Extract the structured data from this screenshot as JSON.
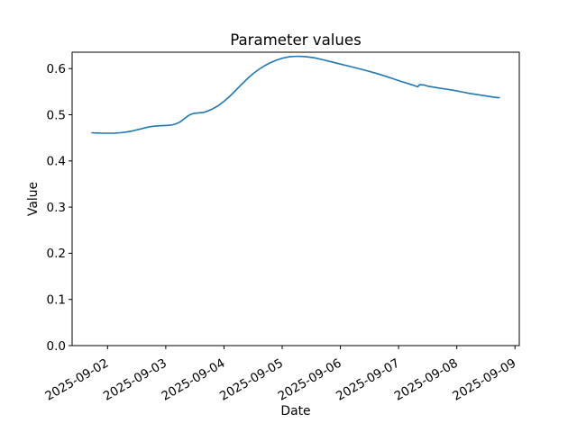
{
  "chart_data": {
    "type": "line",
    "title": "Parameter values",
    "xlabel": "Date",
    "ylabel": "Value",
    "x_tick_labels": [
      "2025-09-02",
      "2025-09-03",
      "2025-09-04",
      "2025-09-05",
      "2025-09-06",
      "2025-09-07",
      "2025-09-08",
      "2025-09-09"
    ],
    "x_tick_positions_days": [
      0,
      1,
      2,
      3,
      4,
      5,
      6,
      7
    ],
    "y_tick_labels": [
      "0.0",
      "0.1",
      "0.2",
      "0.3",
      "0.4",
      "0.5",
      "0.6"
    ],
    "y_ticks": [
      0.0,
      0.1,
      0.2,
      0.3,
      0.4,
      0.5,
      0.6
    ],
    "xlim_days": [
      -0.609,
      7.074
    ],
    "ylim": [
      0,
      0.6355
    ],
    "grid": false,
    "legend": "none",
    "x_tick_label_rotation_deg": 30,
    "line_color": "#1f77b4",
    "axis_color": "#000000",
    "background_color": "#ffffff",
    "series": [
      {
        "name": "Parameter value",
        "x_days": [
          -0.27,
          -0.18,
          -0.08,
          0.02,
          0.12,
          0.22,
          0.32,
          0.42,
          0.52,
          0.6,
          0.64,
          0.66,
          0.72,
          0.8,
          0.9,
          1.0,
          1.08,
          1.16,
          1.24,
          1.31,
          1.37,
          1.42,
          1.47,
          1.53,
          1.6,
          1.66,
          1.72,
          1.8,
          1.9,
          2.0,
          2.1,
          2.2,
          2.3,
          2.4,
          2.5,
          2.6,
          2.7,
          2.8,
          2.9,
          3.0,
          3.12,
          3.26,
          3.4,
          3.55,
          3.7,
          3.85,
          4.0,
          4.15,
          4.3,
          4.45,
          4.6,
          4.75,
          4.9,
          5.05,
          5.18,
          5.28,
          5.33,
          5.36,
          5.44,
          5.5,
          5.58,
          5.7,
          5.82,
          5.95,
          6.08,
          6.22,
          6.36,
          6.5,
          6.62,
          6.7,
          6.73
        ],
        "values": [
          0.461,
          0.4604,
          0.46,
          0.46,
          0.4603,
          0.461,
          0.4625,
          0.4648,
          0.4678,
          0.4702,
          0.4718,
          0.4722,
          0.4738,
          0.4752,
          0.4762,
          0.4768,
          0.4775,
          0.4795,
          0.484,
          0.4905,
          0.4965,
          0.5005,
          0.5025,
          0.5035,
          0.5045,
          0.5052,
          0.508,
          0.5125,
          0.5195,
          0.529,
          0.54,
          0.5525,
          0.5655,
          0.578,
          0.589,
          0.5985,
          0.6062,
          0.6128,
          0.6182,
          0.6225,
          0.6255,
          0.6268,
          0.626,
          0.6235,
          0.6192,
          0.6145,
          0.6098,
          0.6052,
          0.6005,
          0.5955,
          0.5902,
          0.5845,
          0.5782,
          0.572,
          0.5668,
          0.5628,
          0.5605,
          0.5652,
          0.5645,
          0.5618,
          0.5602,
          0.5578,
          0.5555,
          0.5528,
          0.5498,
          0.5462,
          0.5435,
          0.5408,
          0.5385,
          0.5372,
          0.5368
        ]
      }
    ]
  }
}
